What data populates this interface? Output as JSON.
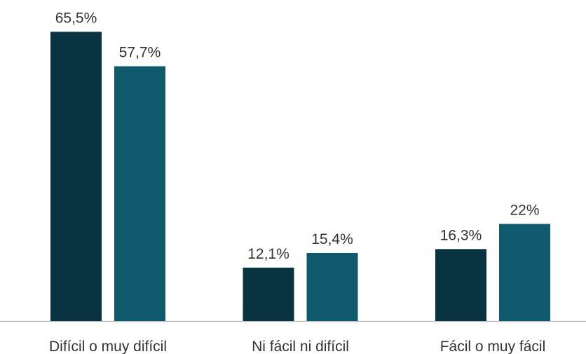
{
  "chart_data": {
    "type": "bar",
    "categories": [
      "Difícil o muy difícil",
      "Ni fácil ni difícil",
      "Fácil o muy fácil"
    ],
    "series": [
      {
        "color": "#0a3341",
        "values": [
          65.5,
          12.1,
          16.3
        ],
        "value_labels": [
          "65,5%",
          "12,1%",
          "16,3%"
        ]
      },
      {
        "color": "#0f5a6c",
        "values": [
          57.7,
          15.4,
          22
        ],
        "value_labels": [
          "57,7%",
          "15,4%",
          "22%"
        ]
      }
    ]
  }
}
